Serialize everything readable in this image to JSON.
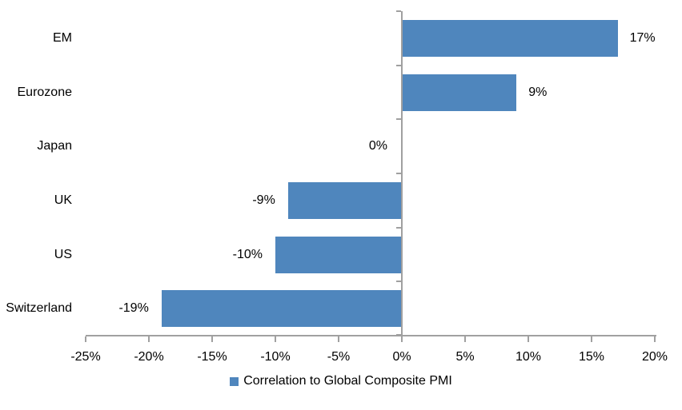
{
  "chart_data": {
    "type": "bar",
    "orientation": "horizontal",
    "title": "",
    "xlabel": "",
    "ylabel": "",
    "categories": [
      "EM",
      "Eurozone",
      "Japan",
      "UK",
      "US",
      "Switzerland"
    ],
    "values": [
      17,
      9,
      0,
      -9,
      -10,
      -19
    ],
    "value_labels": [
      "17%",
      "9%",
      "0%",
      "-9%",
      "-10%",
      "-19%"
    ],
    "xlim": [
      -25,
      20
    ],
    "x_tick_values": [
      -25,
      -20,
      -15,
      -10,
      -5,
      0,
      5,
      10,
      15,
      20
    ],
    "x_tick_labels": [
      "-25%",
      "-20%",
      "-15%",
      "-10%",
      "-5%",
      "0%",
      "5%",
      "10%",
      "15%",
      "20%"
    ],
    "grid": false,
    "legend": "Correlation to Global Composite PMI",
    "legend_position": "bottom-center",
    "bar_color": "#4F86BD",
    "axis_color": "#A0A0A0",
    "text_color": "#000000",
    "background_color": "#FFFFFF"
  }
}
